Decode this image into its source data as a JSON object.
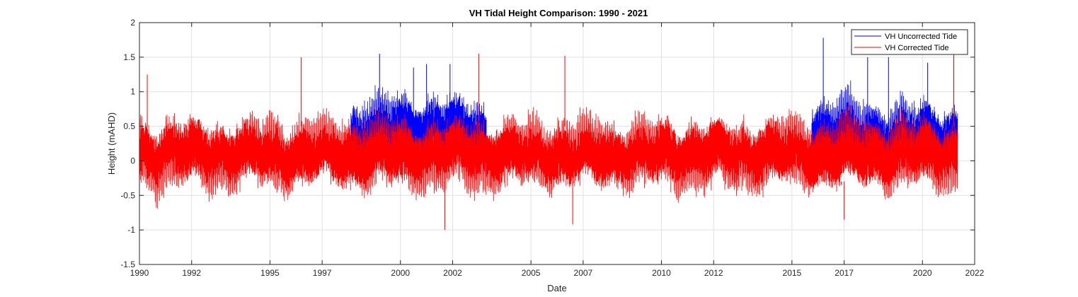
{
  "chart_data": {
    "type": "line",
    "title": "VH Tidal Height Comparison: 1990 - 2021",
    "xlabel": "Date",
    "ylabel": "Height (mAHD)",
    "xlim": [
      1990,
      2022
    ],
    "ylim": [
      -1.5,
      2
    ],
    "x_ticks": [
      1990,
      1992,
      1995,
      1997,
      2000,
      2002,
      2005,
      2007,
      2010,
      2012,
      2015,
      2017,
      2020,
      2022
    ],
    "x_tick_labels": [
      "1990",
      "1992",
      "1995",
      "1997",
      "2000",
      "2002",
      "2005",
      "2007",
      "2010",
      "2012",
      "2015",
      "2017",
      "2020",
      "2022"
    ],
    "y_ticks": [
      -1.5,
      -1,
      -0.5,
      0,
      0.5,
      1,
      1.5,
      2
    ],
    "y_tick_labels": [
      "-1.5",
      "-1",
      "-0.5",
      "0",
      "0.5",
      "1",
      "1.5",
      "2"
    ],
    "grid": true,
    "legend_position": "top-right",
    "series": [
      {
        "name": "VH Uncorrected Tide",
        "color": "#0000ff",
        "points": [
          {
            "x": 1998.2,
            "y": 0.8
          },
          {
            "x": 1999.2,
            "y": 1.55
          },
          {
            "x": 2000.5,
            "y": 1.35
          },
          {
            "x": 2001.0,
            "y": 1.4
          },
          {
            "x": 2001.9,
            "y": 1.4
          },
          {
            "x": 2016.2,
            "y": 1.78
          },
          {
            "x": 2016.9,
            "y": -0.35
          },
          {
            "x": 2017.9,
            "y": 1.5
          },
          {
            "x": 2018.7,
            "y": 1.5
          },
          {
            "x": 2020.2,
            "y": 1.42
          },
          {
            "x": 2021.2,
            "y": 1.4
          }
        ]
      },
      {
        "name": "VH Corrected Tide",
        "color": "#ff0000",
        "points": [
          {
            "x": 1990.3,
            "y": 1.25
          },
          {
            "x": 1996.2,
            "y": 1.5
          },
          {
            "x": 2001.7,
            "y": -1.0
          },
          {
            "x": 2003.0,
            "y": 1.55
          },
          {
            "x": 2006.3,
            "y": 1.52
          },
          {
            "x": 2006.6,
            "y": -0.92
          },
          {
            "x": 2017.0,
            "y": -0.85
          },
          {
            "x": 2021.2,
            "y": 1.55
          }
        ]
      }
    ]
  }
}
